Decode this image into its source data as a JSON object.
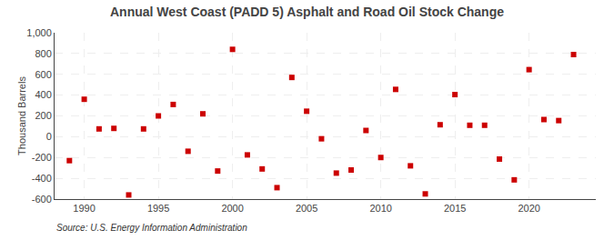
{
  "chart_data": {
    "type": "scatter",
    "title": "Annual West Coast (PADD 5) Asphalt and Road Oil Stock Change",
    "ylabel": "Thousand Barrels",
    "annotations": [
      "Source: U.S. Energy Information Administration"
    ],
    "x": [
      1989,
      1990,
      1991,
      1992,
      1993,
      1994,
      1995,
      1996,
      1997,
      1998,
      1999,
      2000,
      2001,
      2002,
      2003,
      2004,
      2005,
      2006,
      2007,
      2008,
      2009,
      2010,
      2011,
      2012,
      2013,
      2014,
      2015,
      2016,
      2017,
      2018,
      2019,
      2020,
      2021,
      2022,
      2023
    ],
    "values": [
      -230,
      360,
      75,
      80,
      -560,
      75,
      200,
      310,
      -140,
      220,
      -330,
      840,
      -175,
      -310,
      -490,
      570,
      245,
      -20,
      -350,
      -320,
      60,
      -200,
      455,
      -280,
      -550,
      115,
      405,
      110,
      110,
      -215,
      -415,
      645,
      165,
      155,
      790
    ],
    "color": "#cc0000",
    "marker": "square",
    "xlim": [
      1988.0,
      2024.5
    ],
    "xticks": [
      1990,
      1995,
      2000,
      2005,
      2010,
      2015,
      2020
    ],
    "ylim": [
      -600,
      1000
    ],
    "yticks": [
      -600,
      -400,
      -200,
      0,
      200,
      400,
      600,
      800,
      {
        "value": 1000,
        "label": "1,000"
      }
    ],
    "grid": true
  }
}
